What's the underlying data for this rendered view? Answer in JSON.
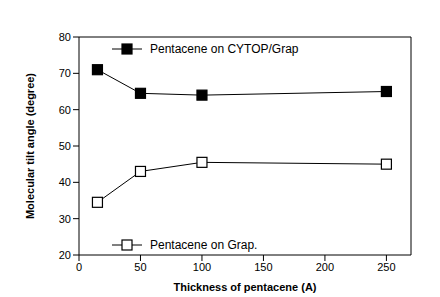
{
  "chart_data": {
    "type": "line",
    "x_label": "Thickness of pentacene (A)",
    "y_label": "Molecular tilt angle (degree)",
    "x": [
      15,
      50,
      100,
      250
    ],
    "xlim": [
      0,
      270
    ],
    "xticks": [
      0,
      50,
      100,
      150,
      200,
      250
    ],
    "ylim": [
      20,
      80
    ],
    "yticks": [
      20,
      30,
      40,
      50,
      60,
      70,
      80
    ],
    "legend": "left",
    "series": [
      {
        "name": "Pentacene on CYTOP/Grap",
        "color": "#000000",
        "marker": "square",
        "values": [
          71,
          64.5,
          64,
          65
        ]
      },
      {
        "name": "Pentacene on Grap.",
        "color": "#000000",
        "marker": "open_square",
        "values": [
          34.5,
          43,
          45.5,
          45
        ]
      }
    ]
  }
}
